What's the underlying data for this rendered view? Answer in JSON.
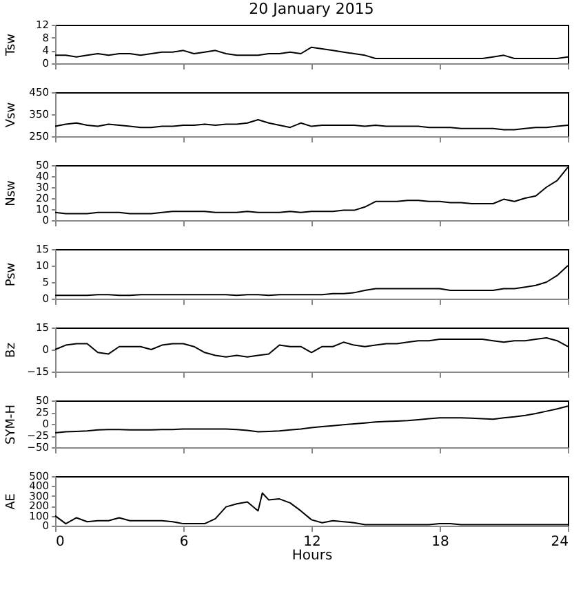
{
  "chart_data": [
    {
      "type": "line",
      "title": "20 January 2015",
      "ylabel": "Tsw",
      "x": [
        0,
        0.5,
        1,
        1.5,
        2,
        2.5,
        3,
        3.5,
        4,
        4.5,
        5,
        5.5,
        6,
        6.5,
        7,
        7.5,
        8,
        8.5,
        9,
        9.5,
        10,
        10.5,
        11,
        11.5,
        12,
        12.5,
        13,
        13.5,
        14,
        14.5,
        15,
        15.5,
        16,
        16.5,
        17,
        17.5,
        18,
        18.5,
        19,
        19.5,
        20,
        20.5,
        21,
        21.5,
        22,
        22.5,
        23,
        23.5,
        24
      ],
      "series": [
        {
          "color": "#000000",
          "values": [
            2.5,
            2.5,
            2.0,
            2.5,
            3.0,
            2.5,
            3.0,
            3.0,
            2.5,
            3.0,
            3.5,
            3.5,
            4.0,
            3.0,
            3.5,
            4.0,
            3.0,
            2.5,
            2.5,
            2.5,
            3.0,
            3.0,
            3.5,
            3.0,
            5.0,
            4.5,
            4.0,
            3.5,
            3.0,
            2.5,
            1.5,
            1.5,
            1.5,
            1.5,
            1.5,
            1.5,
            1.5,
            1.5,
            1.5,
            1.5,
            1.5,
            2.0,
            2.5,
            1.5,
            1.5,
            1.5,
            1.5,
            1.5,
            2.0
          ]
        }
      ],
      "xlim": [
        0,
        24
      ],
      "xticks": [
        0,
        6,
        12,
        18,
        24
      ],
      "ylim": [
        0,
        12
      ],
      "yticks": [
        0,
        4,
        8,
        12
      ],
      "tick_labels": "y",
      "grid": false
    },
    {
      "type": "line",
      "ylabel": "Vsw",
      "x": [
        0,
        0.5,
        1,
        1.5,
        2,
        2.5,
        3,
        3.5,
        4,
        4.5,
        5,
        5.5,
        6,
        6.5,
        7,
        7.5,
        8,
        8.5,
        9,
        9.5,
        10,
        10.5,
        11,
        11.5,
        12,
        12.5,
        13,
        13.5,
        14,
        14.5,
        15,
        15.5,
        16,
        16.5,
        17,
        17.5,
        18,
        18.5,
        19,
        19.5,
        20,
        20.5,
        21,
        21.5,
        22,
        22.5,
        23,
        23.5,
        24
      ],
      "series": [
        {
          "color": "#000000",
          "values": [
            295,
            305,
            310,
            300,
            295,
            305,
            300,
            295,
            290,
            290,
            295,
            295,
            300,
            300,
            305,
            300,
            305,
            305,
            310,
            325,
            310,
            300,
            290,
            310,
            295,
            300,
            300,
            300,
            300,
            295,
            300,
            295,
            295,
            295,
            295,
            290,
            290,
            290,
            285,
            285,
            285,
            285,
            280,
            280,
            285,
            290,
            290,
            295,
            300
          ]
        }
      ],
      "xlim": [
        0,
        24
      ],
      "xticks": [
        0,
        6,
        12,
        18,
        24
      ],
      "ylim": [
        250,
        450
      ],
      "yticks": [
        250,
        350,
        450
      ],
      "tick_labels": "y",
      "grid": false
    },
    {
      "type": "line",
      "ylabel": "Nsw",
      "x": [
        0,
        0.5,
        1,
        1.5,
        2,
        2.5,
        3,
        3.5,
        4,
        4.5,
        5,
        5.5,
        6,
        6.5,
        7,
        7.5,
        8,
        8.5,
        9,
        9.5,
        10,
        10.5,
        11,
        11.5,
        12,
        12.5,
        13,
        13.5,
        14,
        14.5,
        15,
        15.5,
        16,
        16.5,
        17,
        17.5,
        18,
        18.5,
        19,
        19.5,
        20,
        20.5,
        21,
        21.5,
        22,
        22.5,
        23,
        23.5,
        24
      ],
      "series": [
        {
          "color": "#000000",
          "values": [
            7,
            6,
            6,
            6,
            7,
            7,
            7,
            6,
            6,
            6,
            7,
            8,
            8,
            8,
            8,
            7,
            7,
            7,
            8,
            7,
            7,
            7,
            8,
            7,
            8,
            8,
            8,
            9,
            9,
            12,
            17,
            17,
            17,
            18,
            18,
            17,
            17,
            16,
            16,
            15,
            15,
            15,
            19,
            17,
            20,
            22,
            30,
            36,
            48
          ]
        }
      ],
      "xlim": [
        0,
        24
      ],
      "xticks": [
        0,
        6,
        12,
        18,
        24
      ],
      "ylim": [
        0,
        50
      ],
      "yticks": [
        0,
        10,
        20,
        30,
        40,
        50
      ],
      "tick_labels": "y",
      "grid": false
    },
    {
      "type": "line",
      "ylabel": "Psw",
      "x": [
        0,
        0.5,
        1,
        1.5,
        2,
        2.5,
        3,
        3.5,
        4,
        4.5,
        5,
        5.5,
        6,
        6.5,
        7,
        7.5,
        8,
        8.5,
        9,
        9.5,
        10,
        10.5,
        11,
        11.5,
        12,
        12.5,
        13,
        13.5,
        14,
        14.5,
        15,
        15.5,
        16,
        16.5,
        17,
        17.5,
        18,
        18.5,
        19,
        19.5,
        20,
        20.5,
        21,
        21.5,
        22,
        22.5,
        23,
        23.5,
        24
      ],
      "series": [
        {
          "color": "#000000",
          "values": [
            1,
            1,
            1,
            1,
            1.2,
            1.2,
            1,
            1,
            1.2,
            1.2,
            1.2,
            1.2,
            1.2,
            1.2,
            1.2,
            1.2,
            1.2,
            1,
            1.2,
            1.2,
            1,
            1.2,
            1.2,
            1.2,
            1.2,
            1.2,
            1.5,
            1.5,
            1.8,
            2.5,
            3,
            3,
            3,
            3,
            3,
            3,
            3,
            2.5,
            2.5,
            2.5,
            2.5,
            2.5,
            3,
            3,
            3.5,
            4,
            5,
            7,
            10
          ]
        }
      ],
      "xlim": [
        0,
        24
      ],
      "xticks": [
        0,
        6,
        12,
        18,
        24
      ],
      "ylim": [
        0,
        15
      ],
      "yticks": [
        0,
        5,
        10,
        15
      ],
      "tick_labels": "y",
      "grid": false
    },
    {
      "type": "line",
      "ylabel": "Bz",
      "x": [
        0,
        0.5,
        1,
        1.5,
        2,
        2.5,
        3,
        3.5,
        4,
        4.5,
        5,
        5.5,
        6,
        6.5,
        7,
        7.5,
        8,
        8.5,
        9,
        9.5,
        10,
        10.5,
        11,
        11.5,
        12,
        12.5,
        13,
        13.5,
        14,
        14.5,
        15,
        15.5,
        16,
        16.5,
        17,
        17.5,
        18,
        18.5,
        19,
        19.5,
        20,
        20.5,
        21,
        21.5,
        22,
        22.5,
        23,
        23.5,
        24
      ],
      "series": [
        {
          "color": "#000000",
          "values": [
            0,
            3,
            4,
            4,
            -2,
            -3,
            2,
            2,
            2,
            0,
            3,
            4,
            4,
            2,
            -2,
            -4,
            -5,
            -4,
            -5,
            -4,
            -3,
            3,
            2,
            2,
            -2,
            2,
            2,
            5,
            3,
            2,
            3,
            4,
            4,
            5,
            6,
            6,
            7,
            7,
            7,
            7,
            7,
            6,
            5,
            6,
            6,
            7,
            8,
            6,
            2
          ]
        }
      ],
      "xlim": [
        0,
        24
      ],
      "xticks": [
        0,
        6,
        12,
        18,
        24
      ],
      "ylim": [
        -15,
        15
      ],
      "yticks": [
        -15,
        0,
        15
      ],
      "tick_labels": "y",
      "grid": false
    },
    {
      "type": "line",
      "ylabel": "SYM-H",
      "x": [
        0,
        0.5,
        1,
        1.5,
        2,
        2.5,
        3,
        3.5,
        4,
        4.5,
        5,
        5.5,
        6,
        6.5,
        7,
        7.5,
        8,
        8.5,
        9,
        9.5,
        10,
        10.5,
        11,
        11.5,
        12,
        12.5,
        13,
        13.5,
        14,
        14.5,
        15,
        15.5,
        16,
        16.5,
        17,
        17.5,
        18,
        18.5,
        19,
        19.5,
        20,
        20.5,
        21,
        21.5,
        22,
        22.5,
        23,
        23.5,
        24
      ],
      "series": [
        {
          "color": "#000000",
          "values": [
            -19,
            -17,
            -16,
            -15,
            -13,
            -12,
            -12,
            -13,
            -13,
            -13,
            -12,
            -12,
            -11,
            -11,
            -11,
            -11,
            -11,
            -12,
            -14,
            -17,
            -16,
            -15,
            -13,
            -11,
            -8,
            -6,
            -4,
            -2,
            0,
            2,
            4,
            5,
            6,
            7,
            9,
            11,
            13,
            13,
            13,
            12,
            11,
            10,
            13,
            15,
            18,
            22,
            27,
            32,
            38
          ]
        }
      ],
      "xlim": [
        0,
        24
      ],
      "xticks": [
        0,
        6,
        12,
        18,
        24
      ],
      "ylim": [
        -50,
        50
      ],
      "yticks": [
        -50,
        -25,
        0,
        25,
        50
      ],
      "tick_labels": "y",
      "grid": false
    },
    {
      "type": "line",
      "ylabel": "AE",
      "xlabel": "Hours",
      "x": [
        0,
        0.5,
        1,
        1.5,
        2,
        2.5,
        3,
        3.5,
        4,
        4.5,
        5,
        5.5,
        6,
        6.5,
        7,
        7.5,
        8,
        8.5,
        9,
        9.5,
        9.7,
        10,
        10.5,
        11,
        11.5,
        12,
        12.5,
        13,
        13.5,
        14,
        14.5,
        15,
        15.5,
        16,
        16.5,
        17,
        17.5,
        18,
        18.5,
        19,
        19.5,
        20,
        20.5,
        21,
        21.5,
        22,
        22.5,
        23,
        23.5,
        24
      ],
      "series": [
        {
          "color": "#000000",
          "values": [
            100,
            20,
            80,
            40,
            50,
            50,
            80,
            50,
            50,
            50,
            50,
            40,
            20,
            20,
            20,
            70,
            190,
            220,
            240,
            150,
            330,
            260,
            270,
            230,
            150,
            60,
            30,
            50,
            40,
            30,
            10,
            10,
            10,
            10,
            10,
            10,
            10,
            20,
            20,
            10,
            10,
            10,
            10,
            10,
            10,
            10,
            10,
            10,
            10,
            10
          ]
        }
      ],
      "xlim": [
        0,
        24
      ],
      "xticks": [
        0,
        6,
        12,
        18,
        24
      ],
      "ylim": [
        0,
        500
      ],
      "yticks": [
        0,
        100,
        200,
        300,
        400,
        500
      ],
      "grid": false
    }
  ]
}
